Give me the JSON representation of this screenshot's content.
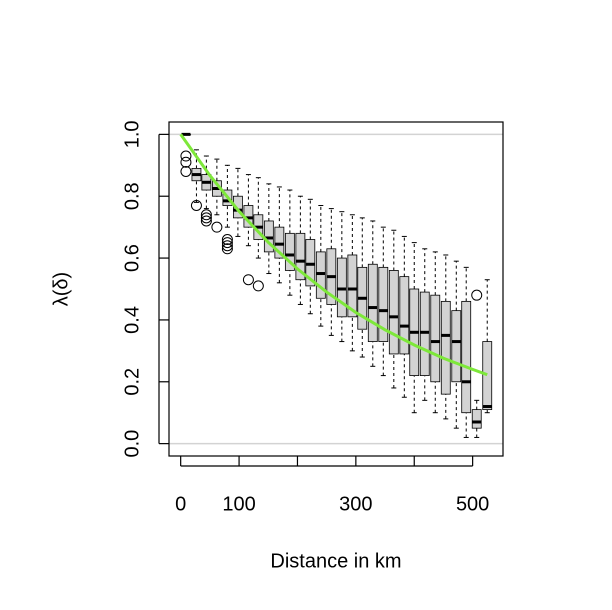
{
  "chart_data": {
    "type": "boxplot",
    "x_label": "Distance in km",
    "y_label": "λ(δ)",
    "xlim": [
      -20,
      552
    ],
    "ylim": [
      -0.04,
      1.04
    ],
    "xticks": [
      0,
      100,
      {
        "value": 200,
        "label": null
      },
      300,
      {
        "value": 400,
        "label": null
      },
      500
    ],
    "yticks": [
      {
        "value": 0,
        "label": "0.0"
      },
      {
        "value": 0.2,
        "label": "0.2"
      },
      {
        "value": 0.4,
        "label": "0.4"
      },
      {
        "value": 0.6,
        "label": "0.6"
      },
      {
        "value": 0.8,
        "label": "0.8"
      },
      {
        "value": 1,
        "label": "1.0"
      }
    ],
    "reference_lines": [
      0,
      1
    ],
    "box_color": "#d3d3d3",
    "boxes": {
      "positions": [
        9,
        27,
        44,
        62,
        80,
        98,
        116,
        133,
        151,
        169,
        187,
        205,
        222,
        240,
        258,
        276,
        294,
        311,
        329,
        347,
        365,
        383,
        400,
        418,
        436,
        454,
        472,
        489,
        507,
        525
      ],
      "lower_whisker": [
        1,
        0.78,
        0.76,
        0.74,
        0.7,
        0.67,
        0.64,
        0.6,
        0.55,
        0.52,
        0.48,
        0.45,
        0.42,
        0.38,
        0.35,
        0.33,
        0.3,
        0.28,
        0.25,
        0.22,
        0.18,
        0.15,
        0.1,
        0.14,
        0.1,
        0.08,
        0.05,
        0.02,
        0.02,
        0.1
      ],
      "q1": [
        1,
        0.85,
        0.82,
        0.8,
        0.77,
        0.73,
        0.7,
        0.66,
        0.62,
        0.6,
        0.56,
        0.53,
        0.51,
        0.47,
        0.45,
        0.41,
        0.41,
        0.37,
        0.33,
        0.33,
        0.29,
        0.29,
        0.22,
        0.22,
        0.2,
        0.16,
        0.2,
        0.1,
        0.05,
        0.11
      ],
      "median": [
        1,
        0.87,
        0.845,
        0.825,
        0.785,
        0.755,
        0.73,
        0.7,
        0.665,
        0.645,
        0.61,
        0.59,
        0.58,
        0.55,
        0.54,
        0.5,
        0.5,
        0.47,
        0.44,
        0.43,
        0.41,
        0.38,
        0.36,
        0.36,
        0.33,
        0.35,
        0.33,
        0.2,
        0.07,
        0.12
      ],
      "q3": [
        1,
        0.89,
        0.87,
        0.85,
        0.82,
        0.8,
        0.77,
        0.74,
        0.72,
        0.7,
        0.68,
        0.68,
        0.66,
        0.62,
        0.63,
        0.6,
        0.61,
        0.57,
        0.58,
        0.57,
        0.56,
        0.54,
        0.5,
        0.49,
        0.48,
        0.46,
        0.43,
        0.46,
        0.11,
        0.33
      ],
      "upper_whisker": [
        1,
        0.95,
        0.93,
        0.92,
        0.9,
        0.89,
        0.87,
        0.86,
        0.84,
        0.83,
        0.82,
        0.8,
        0.79,
        0.77,
        0.76,
        0.75,
        0.74,
        0.73,
        0.72,
        0.7,
        0.69,
        0.67,
        0.65,
        0.63,
        0.62,
        0.61,
        0.59,
        0.57,
        0.14,
        0.53
      ],
      "outliers": [
        [
          0.93,
          0.91,
          0.88
        ],
        [
          0.77
        ],
        [
          0.74,
          0.73,
          0.72
        ],
        [
          0.7
        ],
        [
          0.66,
          0.65,
          0.64,
          0.63
        ],
        [],
        [
          0.53
        ],
        [
          0.51
        ],
        [],
        [],
        [],
        [],
        [],
        [],
        [],
        [],
        [],
        [],
        [],
        [],
        [],
        [],
        [],
        [],
        [],
        [],
        [],
        [],
        [
          0.48
        ],
        []
      ]
    },
    "curve": {
      "color": "#7ee83a",
      "x": [
        0,
        50,
        100,
        150,
        200,
        250,
        300,
        350,
        400,
        450,
        500,
        525
      ],
      "y": [
        1,
        0.867,
        0.751,
        0.651,
        0.565,
        0.49,
        0.424,
        0.368,
        0.319,
        0.276,
        0.24,
        0.223
      ]
    }
  }
}
